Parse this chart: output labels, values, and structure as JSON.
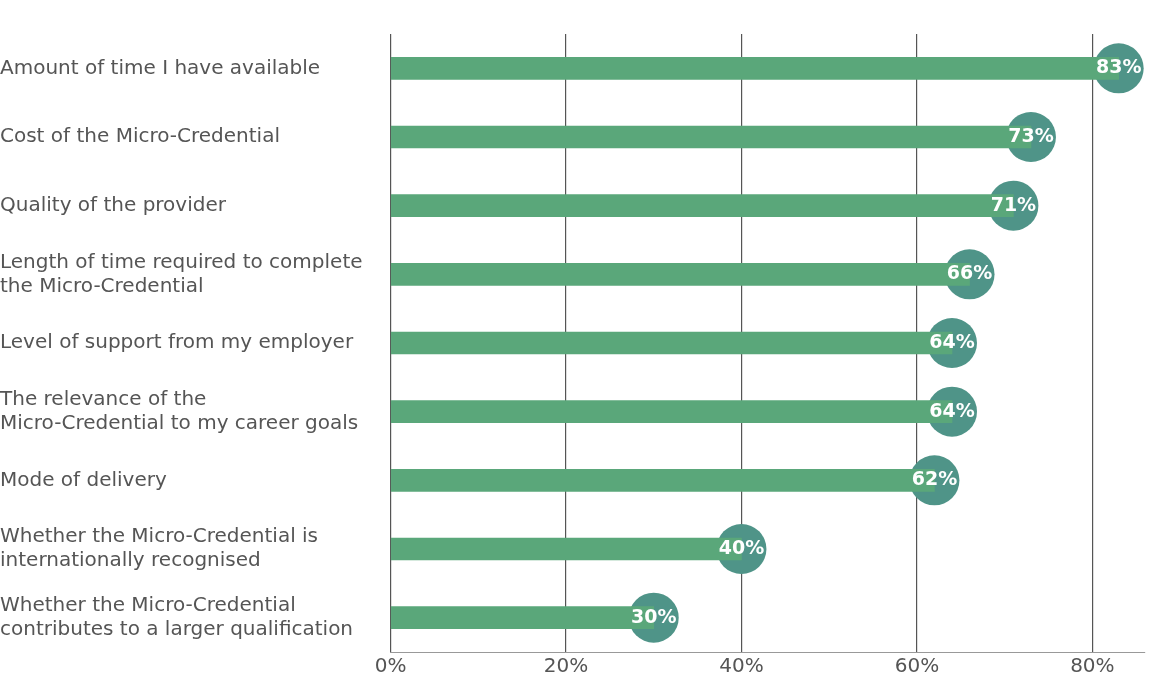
{
  "chart_data": {
    "type": "bar",
    "orientation": "horizontal",
    "categories": [
      "Amount of time I have available",
      "Cost of the Micro-Credential",
      "Quality of the provider",
      "Length of time required to complete the Micro-Credential",
      "Level of support from my employer",
      "The relevance of the Micro-Credential to my career goals",
      "Mode of delivery",
      "Whether the Micro-Credential is internationally recognised",
      "Whether the Micro-Credential contributes to a larger qualification"
    ],
    "values": [
      83,
      73,
      71,
      66,
      64,
      64,
      62,
      40,
      30
    ],
    "value_labels": [
      "83%",
      "73%",
      "71%",
      "66%",
      "64%",
      "64%",
      "62%",
      "40%",
      "30%"
    ],
    "color": "#5aa77a",
    "xlim": [
      0,
      86
    ],
    "xticks": [
      {
        "value": 0,
        "label": "0%"
      },
      {
        "value": 20,
        "label": "20%"
      },
      {
        "value": 40,
        "label": "40%"
      },
      {
        "value": 60,
        "label": "60%"
      },
      {
        "value": 80,
        "label": "80%"
      }
    ],
    "grid": "x"
  }
}
